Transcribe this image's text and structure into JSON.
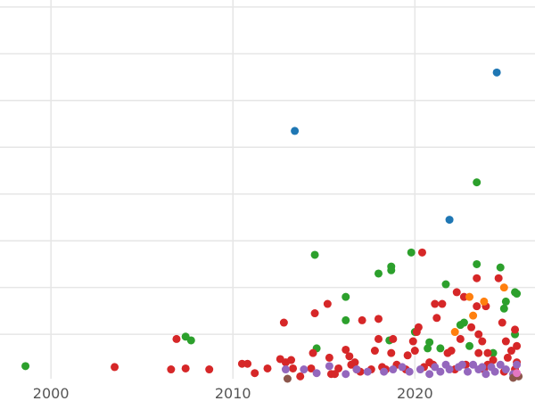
{
  "chart_data": {
    "type": "scatter",
    "title": "",
    "xlabel": "",
    "ylabel": "",
    "xlim": [
      1997.2,
      2026.6
    ],
    "ylim": [
      0,
      8.1
    ],
    "x_ticks": [
      2000,
      2010,
      2020
    ],
    "x_tick_labels": [
      "2000",
      "2010",
      "2020"
    ],
    "y_gridlines": [
      0.95,
      1.95,
      2.95,
      3.95,
      4.95,
      5.95,
      6.95,
      7.95
    ],
    "grid": true,
    "legend": "none",
    "series": [
      {
        "color": "#1f77b4",
        "points": [
          [
            2024.5,
            6.55
          ],
          [
            2013.4,
            5.3
          ],
          [
            2021.9,
            3.4
          ]
        ]
      },
      {
        "color": "#2ca02c",
        "points": [
          [
            1998.6,
            0.27
          ],
          [
            2007.4,
            0.9
          ],
          [
            2007.7,
            0.82
          ],
          [
            2014.5,
            2.65
          ],
          [
            2014.6,
            0.65
          ],
          [
            2016.2,
            1.75
          ],
          [
            2016.2,
            1.25
          ],
          [
            2018.0,
            2.25
          ],
          [
            2018.7,
            2.4
          ],
          [
            2018.7,
            2.32
          ],
          [
            2018.6,
            0.82
          ],
          [
            2019.8,
            2.7
          ],
          [
            2020.0,
            1.0
          ],
          [
            2020.7,
            0.65
          ],
          [
            2020.8,
            0.78
          ],
          [
            2021.7,
            2.02
          ],
          [
            2022.5,
            1.15
          ],
          [
            2022.7,
            1.2
          ],
          [
            2023.4,
            4.2
          ],
          [
            2023.4,
            2.45
          ],
          [
            2024.7,
            2.38
          ],
          [
            2024.9,
            1.5
          ],
          [
            2025.0,
            1.65
          ],
          [
            2025.5,
            1.85
          ],
          [
            2025.6,
            1.82
          ],
          [
            2025.5,
            0.95
          ],
          [
            2023.0,
            0.7
          ],
          [
            2021.4,
            0.65
          ],
          [
            2024.3,
            0.55
          ]
        ]
      },
      {
        "color": "#d62728",
        "points": [
          [
            2003.5,
            0.25
          ],
          [
            2006.6,
            0.2
          ],
          [
            2006.9,
            0.85
          ],
          [
            2007.4,
            0.22
          ],
          [
            2008.7,
            0.2
          ],
          [
            2010.5,
            0.32
          ],
          [
            2010.8,
            0.32
          ],
          [
            2011.2,
            0.12
          ],
          [
            2011.9,
            0.22
          ],
          [
            2012.6,
            0.42
          ],
          [
            2012.8,
            1.2
          ],
          [
            2012.9,
            0.35
          ],
          [
            2013.2,
            0.4
          ],
          [
            2013.3,
            0.22
          ],
          [
            2013.7,
            0.05
          ],
          [
            2014.3,
            0.22
          ],
          [
            2014.4,
            0.55
          ],
          [
            2014.5,
            1.4
          ],
          [
            2015.2,
            1.6
          ],
          [
            2015.3,
            0.45
          ],
          [
            2015.4,
            0.1
          ],
          [
            2015.8,
            0.22
          ],
          [
            2016.2,
            0.62
          ],
          [
            2016.4,
            0.48
          ],
          [
            2016.5,
            0.3
          ],
          [
            2016.8,
            0.2
          ],
          [
            2017.1,
            1.25
          ],
          [
            2017.6,
            0.2
          ],
          [
            2017.8,
            0.6
          ],
          [
            2018.0,
            0.85
          ],
          [
            2018.0,
            1.28
          ],
          [
            2018.4,
            0.2
          ],
          [
            2018.7,
            0.55
          ],
          [
            2018.8,
            0.85
          ],
          [
            2019.0,
            0.3
          ],
          [
            2019.6,
            0.5
          ],
          [
            2019.9,
            0.8
          ],
          [
            2020.0,
            0.6
          ],
          [
            2020.1,
            1.0
          ],
          [
            2020.2,
            1.1
          ],
          [
            2020.4,
            2.7
          ],
          [
            2020.8,
            0.35
          ],
          [
            2021.1,
            1.6
          ],
          [
            2021.2,
            1.3
          ],
          [
            2021.5,
            1.6
          ],
          [
            2021.8,
            0.55
          ],
          [
            2022.0,
            0.6
          ],
          [
            2022.3,
            1.85
          ],
          [
            2022.5,
            0.85
          ],
          [
            2022.7,
            1.75
          ],
          [
            2023.1,
            1.1
          ],
          [
            2023.4,
            1.55
          ],
          [
            2023.4,
            2.15
          ],
          [
            2023.5,
            0.95
          ],
          [
            2023.5,
            0.55
          ],
          [
            2023.7,
            0.8
          ],
          [
            2023.9,
            1.55
          ],
          [
            2024.0,
            0.55
          ],
          [
            2024.3,
            0.4
          ],
          [
            2024.6,
            2.15
          ],
          [
            2024.8,
            1.2
          ],
          [
            2025.0,
            0.8
          ],
          [
            2025.1,
            0.45
          ],
          [
            2025.5,
            1.05
          ],
          [
            2025.6,
            0.7
          ],
          [
            2025.3,
            0.6
          ],
          [
            2025.6,
            0.35
          ],
          [
            2024.9,
            0.15
          ],
          [
            2023.8,
            0.2
          ],
          [
            2022.8,
            0.3
          ],
          [
            2021.0,
            0.3
          ],
          [
            2019.5,
            0.2
          ],
          [
            2017.0,
            0.15
          ],
          [
            2015.6,
            0.1
          ],
          [
            2024.0,
            0.3
          ],
          [
            2025.5,
            0.2
          ],
          [
            2022.2,
            0.2
          ],
          [
            2020.5,
            0.25
          ],
          [
            2018.2,
            0.25
          ],
          [
            2016.7,
            0.35
          ]
        ]
      },
      {
        "color": "#ff7f0e",
        "points": [
          [
            2023.0,
            1.75
          ],
          [
            2023.2,
            1.35
          ],
          [
            2023.8,
            1.65
          ],
          [
            2024.9,
            1.95
          ],
          [
            2022.2,
            1.0
          ]
        ]
      },
      {
        "color": "#9467bd",
        "points": [
          [
            2012.9,
            0.2
          ],
          [
            2013.9,
            0.2
          ],
          [
            2014.6,
            0.12
          ],
          [
            2015.3,
            0.27
          ],
          [
            2016.2,
            0.1
          ],
          [
            2016.8,
            0.2
          ],
          [
            2017.4,
            0.15
          ],
          [
            2018.3,
            0.15
          ],
          [
            2018.8,
            0.2
          ],
          [
            2019.3,
            0.25
          ],
          [
            2019.7,
            0.15
          ],
          [
            2020.3,
            0.2
          ],
          [
            2020.8,
            0.1
          ],
          [
            2021.1,
            0.25
          ],
          [
            2021.4,
            0.15
          ],
          [
            2021.7,
            0.3
          ],
          [
            2021.9,
            0.2
          ],
          [
            2022.4,
            0.25
          ],
          [
            2022.6,
            0.3
          ],
          [
            2022.9,
            0.15
          ],
          [
            2023.2,
            0.3
          ],
          [
            2023.5,
            0.2
          ],
          [
            2023.9,
            0.1
          ],
          [
            2024.2,
            0.25
          ],
          [
            2024.7,
            0.3
          ],
          [
            2025.0,
            0.2
          ],
          [
            2025.4,
            0.1
          ],
          [
            2025.6,
            0.3
          ],
          [
            2024.4,
            0.15
          ],
          [
            2023.7,
            0.25
          ]
        ]
      },
      {
        "color": "#8c564b",
        "points": [
          [
            2013.0,
            0.0
          ],
          [
            2025.4,
            0.02
          ],
          [
            2025.7,
            0.05
          ]
        ]
      },
      {
        "color": "#e377c2",
        "points": [
          [
            2025.6,
            0.12
          ]
        ]
      }
    ]
  }
}
